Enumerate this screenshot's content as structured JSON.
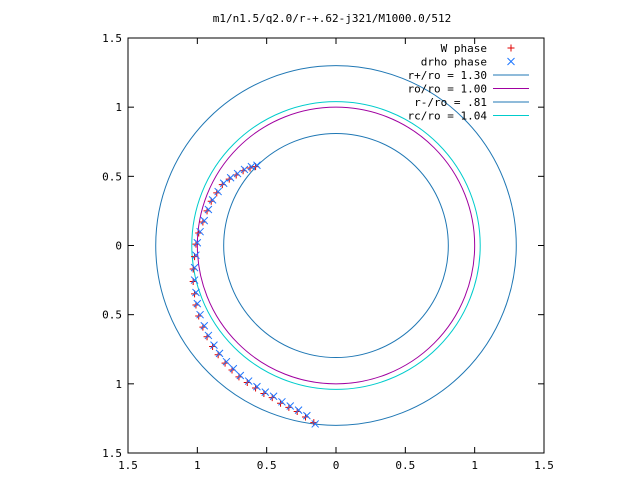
{
  "chart_data": {
    "type": "scatter",
    "title": "m1/n1.5/q2.0/r-+.62-j321/M1000.0/512",
    "xlabel": "",
    "ylabel": "",
    "xlim": [
      -1.5,
      1.5
    ],
    "ylim": [
      -1.5,
      1.5
    ],
    "grid": false,
    "legend_placement": "top-right",
    "x_ticks": [
      -1.5,
      -1,
      -0.5,
      0,
      0.5,
      1,
      1.5
    ],
    "x_tick_labels": [
      "1.5",
      "1",
      "0.5",
      "0",
      "0.5",
      "1",
      "1.5"
    ],
    "y_ticks": [
      1.5,
      1,
      0.5,
      0,
      -0.5,
      -1,
      -1.5
    ],
    "y_tick_labels": [
      "1.5",
      "1",
      "0.5",
      "0",
      "0.5",
      "1",
      "1.5"
    ],
    "circles": [
      {
        "name": "r+/ro = 1.30",
        "radius": 1.3,
        "color": "#1f77b4"
      },
      {
        "name": "ro/ro = 1.00",
        "radius": 1.0,
        "color": "#a000a0"
      },
      {
        "name": "r-/ro = .81",
        "radius": 0.81,
        "color": "#1f77b4"
      },
      {
        "name": "rc/ro = 1.04",
        "radius": 1.04,
        "color": "#00cccc"
      }
    ],
    "series": [
      {
        "name": "W phase",
        "marker": "+",
        "color": "#e00000",
        "x": [
          -0.58,
          -0.62,
          -0.67,
          -0.72,
          -0.77,
          -0.82,
          -0.86,
          -0.9,
          -0.93,
          -0.96,
          -0.99,
          -1.01,
          -1.02,
          -1.03,
          -1.03,
          -1.02,
          -1.01,
          -0.99,
          -0.96,
          -0.93,
          -0.89,
          -0.85,
          -0.8,
          -0.75,
          -0.7,
          -0.64,
          -0.58,
          -0.52,
          -0.46,
          -0.4,
          -0.34,
          -0.28,
          -0.22,
          -0.16
        ],
        "y": [
          0.57,
          0.56,
          0.54,
          0.51,
          0.48,
          0.44,
          0.38,
          0.32,
          0.25,
          0.17,
          0.09,
          0.01,
          -0.08,
          -0.17,
          -0.26,
          -0.35,
          -0.43,
          -0.51,
          -0.59,
          -0.66,
          -0.73,
          -0.79,
          -0.85,
          -0.9,
          -0.95,
          -0.99,
          -1.03,
          -1.07,
          -1.1,
          -1.14,
          -1.17,
          -1.2,
          -1.24,
          -1.28
        ]
      },
      {
        "name": "drho phase",
        "marker": "x",
        "color": "#1f77ff",
        "x": [
          -0.57,
          -0.61,
          -0.66,
          -0.71,
          -0.76,
          -0.81,
          -0.85,
          -0.89,
          -0.92,
          -0.95,
          -0.98,
          -1.0,
          -1.01,
          -1.02,
          -1.02,
          -1.01,
          -1.0,
          -0.98,
          -0.95,
          -0.92,
          -0.88,
          -0.84,
          -0.79,
          -0.74,
          -0.69,
          -0.63,
          -0.57,
          -0.51,
          -0.45,
          -0.39,
          -0.33,
          -0.27,
          -0.21,
          -0.15
        ],
        "y": [
          0.58,
          0.57,
          0.55,
          0.52,
          0.49,
          0.45,
          0.39,
          0.33,
          0.26,
          0.18,
          0.1,
          0.02,
          -0.07,
          -0.16,
          -0.25,
          -0.34,
          -0.42,
          -0.5,
          -0.58,
          -0.65,
          -0.72,
          -0.78,
          -0.84,
          -0.89,
          -0.94,
          -0.98,
          -1.02,
          -1.06,
          -1.09,
          -1.13,
          -1.16,
          -1.19,
          -1.23,
          -1.29
        ]
      }
    ]
  }
}
